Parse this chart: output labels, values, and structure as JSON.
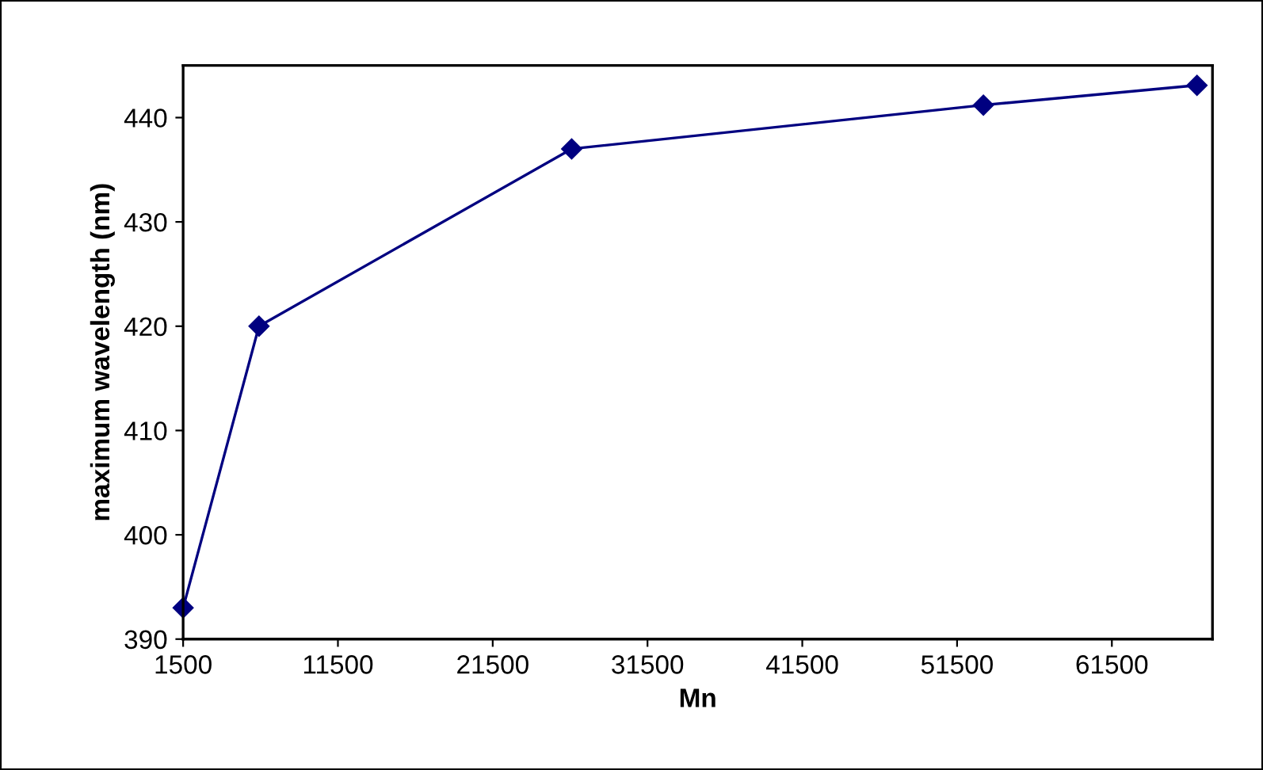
{
  "chart_data": {
    "type": "line",
    "xlabel": "Mn",
    "ylabel": "maximum wavelength (nm)",
    "x": [
      1500,
      6400,
      26600,
      53200,
      67000
    ],
    "series": [
      {
        "color": "#000080",
        "values": [
          393,
          420,
          437,
          441.2,
          443.1
        ]
      }
    ],
    "xlim": [
      1500,
      68000
    ],
    "xticks": [
      1500,
      11500,
      21500,
      31500,
      41500,
      51500,
      61500
    ],
    "ylim": [
      390,
      445
    ],
    "yticks": [
      390,
      400,
      410,
      420,
      430,
      440
    ],
    "marker": "diamond",
    "line_style": "solid",
    "grid": false,
    "legend": false
  }
}
